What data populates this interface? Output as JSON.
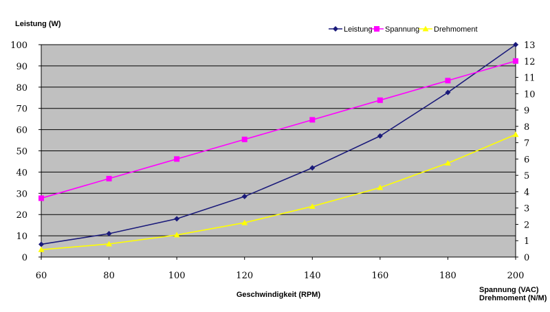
{
  "chart_data": {
    "type": "line",
    "ylabel_left": "Leistung (W)",
    "xlabel": "Geschwindigkeit (RPM)",
    "ylabel_right_line1": "Spannung (VAC)",
    "ylabel_right_line2": "Drehmoment (N/M)",
    "x": [
      60,
      80,
      100,
      120,
      140,
      160,
      180,
      200
    ],
    "xlim": [
      60,
      200
    ],
    "x_ticks": [
      "60",
      "80",
      "100",
      "120",
      "140",
      "160",
      "180",
      "200"
    ],
    "ylim_left": [
      0,
      100
    ],
    "y_left_ticks": [
      "0",
      "10",
      "20",
      "30",
      "40",
      "50",
      "60",
      "70",
      "80",
      "90",
      "100"
    ],
    "ylim_right": [
      0,
      13
    ],
    "y_right_ticks": [
      "0",
      "1",
      "2",
      "3",
      "4",
      "5",
      "6",
      "7",
      "8",
      "9",
      "10",
      "11",
      "12",
      "13"
    ],
    "grid": "horizontal",
    "legend_position": "top-right",
    "plot_background": "#c0c0c0",
    "series": [
      {
        "name": "Leistung",
        "axis": "left",
        "color": "#1a1a7a",
        "marker": "diamond",
        "values": [
          6,
          11,
          18,
          28.5,
          42,
          57,
          77.5,
          100
        ]
      },
      {
        "name": "Spannung",
        "axis": "right",
        "color": "#ff00ff",
        "marker": "square",
        "values": [
          3.6,
          4.8,
          6.0,
          7.2,
          8.4,
          9.6,
          10.8,
          12.0
        ]
      },
      {
        "name": "Drehmoment",
        "axis": "right",
        "color": "#ffff00",
        "marker": "triangle",
        "values": [
          0.45,
          0.8,
          1.35,
          2.1,
          3.1,
          4.25,
          5.75,
          7.5
        ]
      }
    ]
  }
}
